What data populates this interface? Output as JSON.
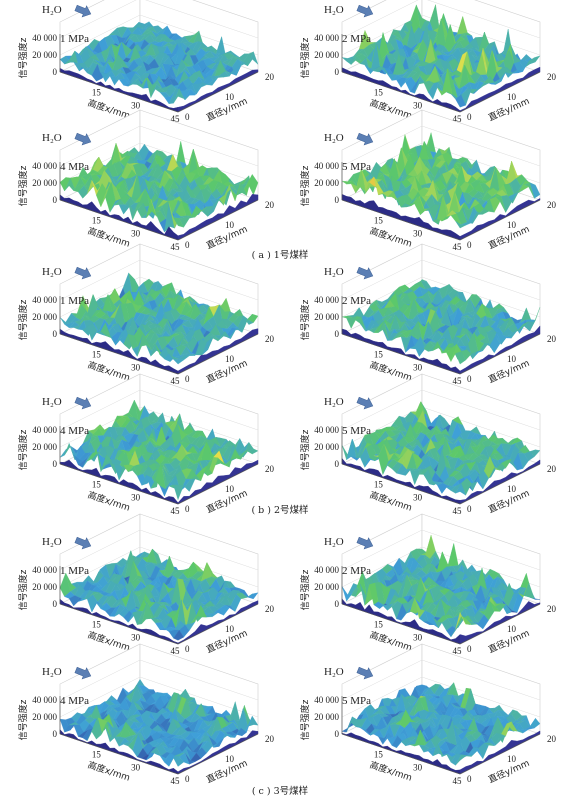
{
  "figure": {
    "water_label": "H₂O",
    "z_axis_label": "信号强度z",
    "x_axis_label": "高度x/mm",
    "y_axis_label": "直径y/mm",
    "z_ticks": [
      "0",
      "20 000",
      "40 000"
    ],
    "x_ticks": [
      "15",
      "30",
      "45"
    ],
    "y_ticks": [
      "0",
      "10",
      "20"
    ],
    "colors": {
      "arrow": "#5b7fb4",
      "low": "#2a2a8a",
      "mid_low": "#3fa0d8",
      "mid": "#5cc86a",
      "mid_high": "#e6e04a",
      "high": "#d8241c"
    }
  },
  "chart_data": [
    {
      "type": "surface",
      "group": "a",
      "pressure_label": "1 MPa",
      "zlim": [
        0,
        40000
      ],
      "xlim": [
        0,
        45
      ],
      "ylim": [
        0,
        20
      ],
      "x_ticks": [
        15,
        30,
        45
      ],
      "y_ticks": [
        0,
        10,
        20
      ],
      "z_ticks": [
        0,
        20000,
        40000
      ],
      "typical_signal": 15000,
      "peak_signal": 28000
    },
    {
      "type": "surface",
      "group": "a",
      "pressure_label": "2 MPa",
      "zlim": [
        0,
        40000
      ],
      "xlim": [
        0,
        45
      ],
      "ylim": [
        0,
        20
      ],
      "x_ticks": [
        15,
        30,
        45
      ],
      "y_ticks": [
        0,
        10,
        20
      ],
      "z_ticks": [
        0,
        20000,
        40000
      ],
      "typical_signal": 17000,
      "peak_signal": 42000
    },
    {
      "type": "surface",
      "group": "a",
      "pressure_label": "4 MPa",
      "zlim": [
        0,
        40000
      ],
      "xlim": [
        0,
        45
      ],
      "ylim": [
        0,
        20
      ],
      "x_ticks": [
        15,
        30,
        45
      ],
      "y_ticks": [
        0,
        10,
        20
      ],
      "z_ticks": [
        0,
        20000,
        40000
      ],
      "typical_signal": 20000,
      "peak_signal": 40000
    },
    {
      "type": "surface",
      "group": "a",
      "pressure_label": "5 MPa",
      "zlim": [
        0,
        40000
      ],
      "xlim": [
        0,
        45
      ],
      "ylim": [
        0,
        20
      ],
      "x_ticks": [
        15,
        30,
        45
      ],
      "y_ticks": [
        0,
        10,
        20
      ],
      "z_ticks": [
        0,
        20000,
        40000
      ],
      "typical_signal": 21000,
      "peak_signal": 42000
    },
    {
      "type": "surface",
      "group": "b",
      "pressure_label": "1 MPa",
      "zlim": [
        0,
        40000
      ],
      "xlim": [
        0,
        45
      ],
      "ylim": [
        0,
        20
      ],
      "x_ticks": [
        15,
        30,
        45
      ],
      "y_ticks": [
        0,
        10,
        20
      ],
      "z_ticks": [
        0,
        20000,
        40000
      ],
      "typical_signal": 18000,
      "peak_signal": 32000
    },
    {
      "type": "surface",
      "group": "b",
      "pressure_label": "2 MPa",
      "zlim": [
        0,
        40000
      ],
      "xlim": [
        0,
        45
      ],
      "ylim": [
        0,
        20
      ],
      "x_ticks": [
        15,
        30,
        45
      ],
      "y_ticks": [
        0,
        10,
        20
      ],
      "z_ticks": [
        0,
        20000,
        40000
      ],
      "typical_signal": 18000,
      "peak_signal": 32000
    },
    {
      "type": "surface",
      "group": "b",
      "pressure_label": "4 MPa",
      "zlim": [
        0,
        40000
      ],
      "xlim": [
        0,
        45
      ],
      "ylim": [
        0,
        20
      ],
      "x_ticks": [
        15,
        30,
        45
      ],
      "y_ticks": [
        0,
        10,
        20
      ],
      "z_ticks": [
        0,
        20000,
        40000
      ],
      "typical_signal": 19000,
      "peak_signal": 36000
    },
    {
      "type": "surface",
      "group": "b",
      "pressure_label": "5 MPa",
      "zlim": [
        0,
        40000
      ],
      "xlim": [
        0,
        45
      ],
      "ylim": [
        0,
        20
      ],
      "x_ticks": [
        15,
        30,
        45
      ],
      "y_ticks": [
        0,
        10,
        20
      ],
      "z_ticks": [
        0,
        20000,
        40000
      ],
      "typical_signal": 19000,
      "peak_signal": 36000
    },
    {
      "type": "surface",
      "group": "c",
      "pressure_label": "1 MPa",
      "zlim": [
        0,
        40000
      ],
      "xlim": [
        0,
        45
      ],
      "ylim": [
        0,
        20
      ],
      "x_ticks": [
        15,
        30,
        45
      ],
      "y_ticks": [
        0,
        10,
        20
      ],
      "z_ticks": [
        0,
        20000,
        40000
      ],
      "typical_signal": 16000,
      "peak_signal": 38000
    },
    {
      "type": "surface",
      "group": "c",
      "pressure_label": "2 MPa",
      "zlim": [
        0,
        40000
      ],
      "xlim": [
        0,
        45
      ],
      "ylim": [
        0,
        20
      ],
      "x_ticks": [
        15,
        30,
        45
      ],
      "y_ticks": [
        0,
        10,
        20
      ],
      "z_ticks": [
        0,
        20000,
        40000
      ],
      "typical_signal": 17000,
      "peak_signal": 38000
    },
    {
      "type": "surface",
      "group": "c",
      "pressure_label": "4 MPa",
      "zlim": [
        0,
        40000
      ],
      "xlim": [
        0,
        45
      ],
      "ylim": [
        0,
        20
      ],
      "x_ticks": [
        15,
        30,
        45
      ],
      "y_ticks": [
        0,
        10,
        20
      ],
      "z_ticks": [
        0,
        20000,
        40000
      ],
      "typical_signal": 14000,
      "peak_signal": 30000
    },
    {
      "type": "surface",
      "group": "c",
      "pressure_label": "5 MPa",
      "zlim": [
        0,
        40000
      ],
      "xlim": [
        0,
        45
      ],
      "ylim": [
        0,
        20
      ],
      "x_ticks": [
        15,
        30,
        45
      ],
      "y_ticks": [
        0,
        10,
        20
      ],
      "z_ticks": [
        0,
        20000,
        40000
      ],
      "typical_signal": 15000,
      "peak_signal": 32000
    }
  ],
  "captions": [
    "( a ) 1号煤样",
    "( b ) 2号煤样",
    "( c ) 3号煤样"
  ]
}
